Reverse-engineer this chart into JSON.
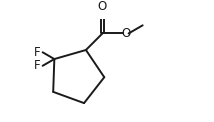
{
  "bg_color": "#ffffff",
  "line_color": "#1a1a1a",
  "line_width": 1.4,
  "font_size": 8.5,
  "fig_width": 2.14,
  "fig_height": 1.22,
  "dpi": 100,
  "F1_label": "F",
  "F2_label": "F",
  "O_ester_label": "O",
  "O_carbonyl_label": "O"
}
